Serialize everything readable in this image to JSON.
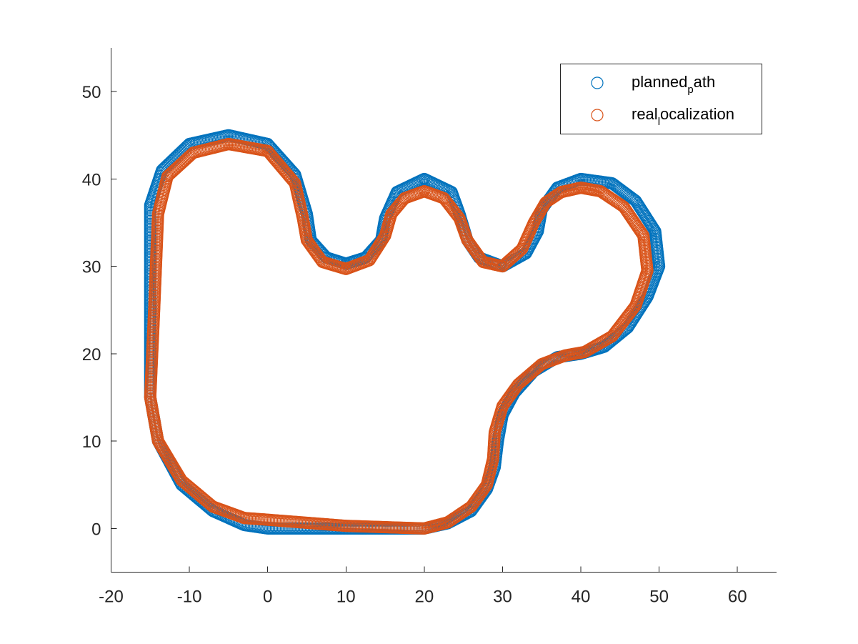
{
  "chart_data": {
    "type": "scatter",
    "marker": "open-circle",
    "xlim": [
      -20,
      65
    ],
    "ylim": [
      -5,
      55
    ],
    "xticks": [
      -20,
      -10,
      0,
      10,
      20,
      30,
      40,
      50,
      60
    ],
    "yticks": [
      0,
      10,
      20,
      30,
      40,
      50
    ],
    "grid": false,
    "legend_position": "top-right",
    "legend": [
      {
        "base": "planned",
        "sub": "p",
        "rest": "ath",
        "color": "#0072BD"
      },
      {
        "base": "real",
        "sub": "l",
        "rest": "ocalization",
        "color": "#D95319"
      }
    ],
    "series": [
      {
        "color": "#0072BD",
        "points": [
          [
            0,
            0
          ],
          [
            10,
            0
          ],
          [
            20,
            0
          ],
          [
            23,
            0.6
          ],
          [
            26,
            2
          ],
          [
            28,
            4.5
          ],
          [
            29,
            7
          ],
          [
            29.4,
            10
          ],
          [
            30,
            13
          ],
          [
            31.5,
            15.5
          ],
          [
            34,
            18
          ],
          [
            37,
            19.6
          ],
          [
            40,
            20
          ],
          [
            43,
            20.8
          ],
          [
            46,
            23
          ],
          [
            48.5,
            26.5
          ],
          [
            50,
            30
          ],
          [
            49.5,
            34
          ],
          [
            47,
            37.5
          ],
          [
            44,
            39.5
          ],
          [
            40,
            40
          ],
          [
            37,
            39
          ],
          [
            35,
            36.5
          ],
          [
            34.5,
            34
          ],
          [
            33,
            31.5
          ],
          [
            30,
            30
          ],
          [
            27,
            31
          ],
          [
            25.5,
            33
          ],
          [
            24.5,
            36
          ],
          [
            23.5,
            38.5
          ],
          [
            20,
            40
          ],
          [
            16.5,
            38.5
          ],
          [
            15,
            35.5
          ],
          [
            14.5,
            33
          ],
          [
            12.5,
            31
          ],
          [
            10,
            30.3
          ],
          [
            7.5,
            31
          ],
          [
            5.5,
            33
          ],
          [
            5,
            36
          ],
          [
            3.5,
            40.5
          ],
          [
            0,
            44
          ],
          [
            -5,
            45
          ],
          [
            -10,
            44
          ],
          [
            -13.5,
            41
          ],
          [
            -15,
            37
          ],
          [
            -15,
            30
          ],
          [
            -15,
            15
          ],
          [
            -14,
            10
          ],
          [
            -11,
            5
          ],
          [
            -7,
            2
          ],
          [
            -3,
            0.4
          ],
          [
            0,
            0
          ]
        ]
      },
      {
        "color": "#D95319",
        "points": [
          [
            0,
            1
          ],
          [
            10,
            0.3
          ],
          [
            20,
            0
          ],
          [
            23,
            0.7
          ],
          [
            26,
            2.5
          ],
          [
            28,
            5
          ],
          [
            28.8,
            8
          ],
          [
            29,
            11
          ],
          [
            30,
            14
          ],
          [
            32,
            16.5
          ],
          [
            35,
            18.8
          ],
          [
            38,
            19.8
          ],
          [
            40.5,
            20.2
          ],
          [
            44,
            22
          ],
          [
            47,
            25.5
          ],
          [
            48.5,
            29.5
          ],
          [
            48,
            33.5
          ],
          [
            45.5,
            36.8
          ],
          [
            42.5,
            38.6
          ],
          [
            40,
            39
          ],
          [
            37.5,
            38.5
          ],
          [
            35.5,
            37.3
          ],
          [
            34,
            35
          ],
          [
            32.5,
            32
          ],
          [
            30,
            30
          ],
          [
            27.5,
            30.5
          ],
          [
            25.5,
            33
          ],
          [
            24.5,
            35.5
          ],
          [
            22.5,
            37.8
          ],
          [
            20,
            38.6
          ],
          [
            17.5,
            37.8
          ],
          [
            15.8,
            36
          ],
          [
            15,
            33.5
          ],
          [
            13,
            30.7
          ],
          [
            10,
            29.7
          ],
          [
            7,
            30.5
          ],
          [
            5,
            33
          ],
          [
            4.5,
            35.5
          ],
          [
            3.5,
            39.5
          ],
          [
            0,
            43.2
          ],
          [
            -5,
            44
          ],
          [
            -9.5,
            43
          ],
          [
            -12.8,
            40.3
          ],
          [
            -14,
            36
          ],
          [
            -14.5,
            25
          ],
          [
            -15,
            15
          ],
          [
            -14,
            10
          ],
          [
            -11,
            5.5
          ],
          [
            -7,
            2.5
          ],
          [
            -3,
            1.2
          ],
          [
            0,
            1
          ]
        ]
      }
    ]
  }
}
